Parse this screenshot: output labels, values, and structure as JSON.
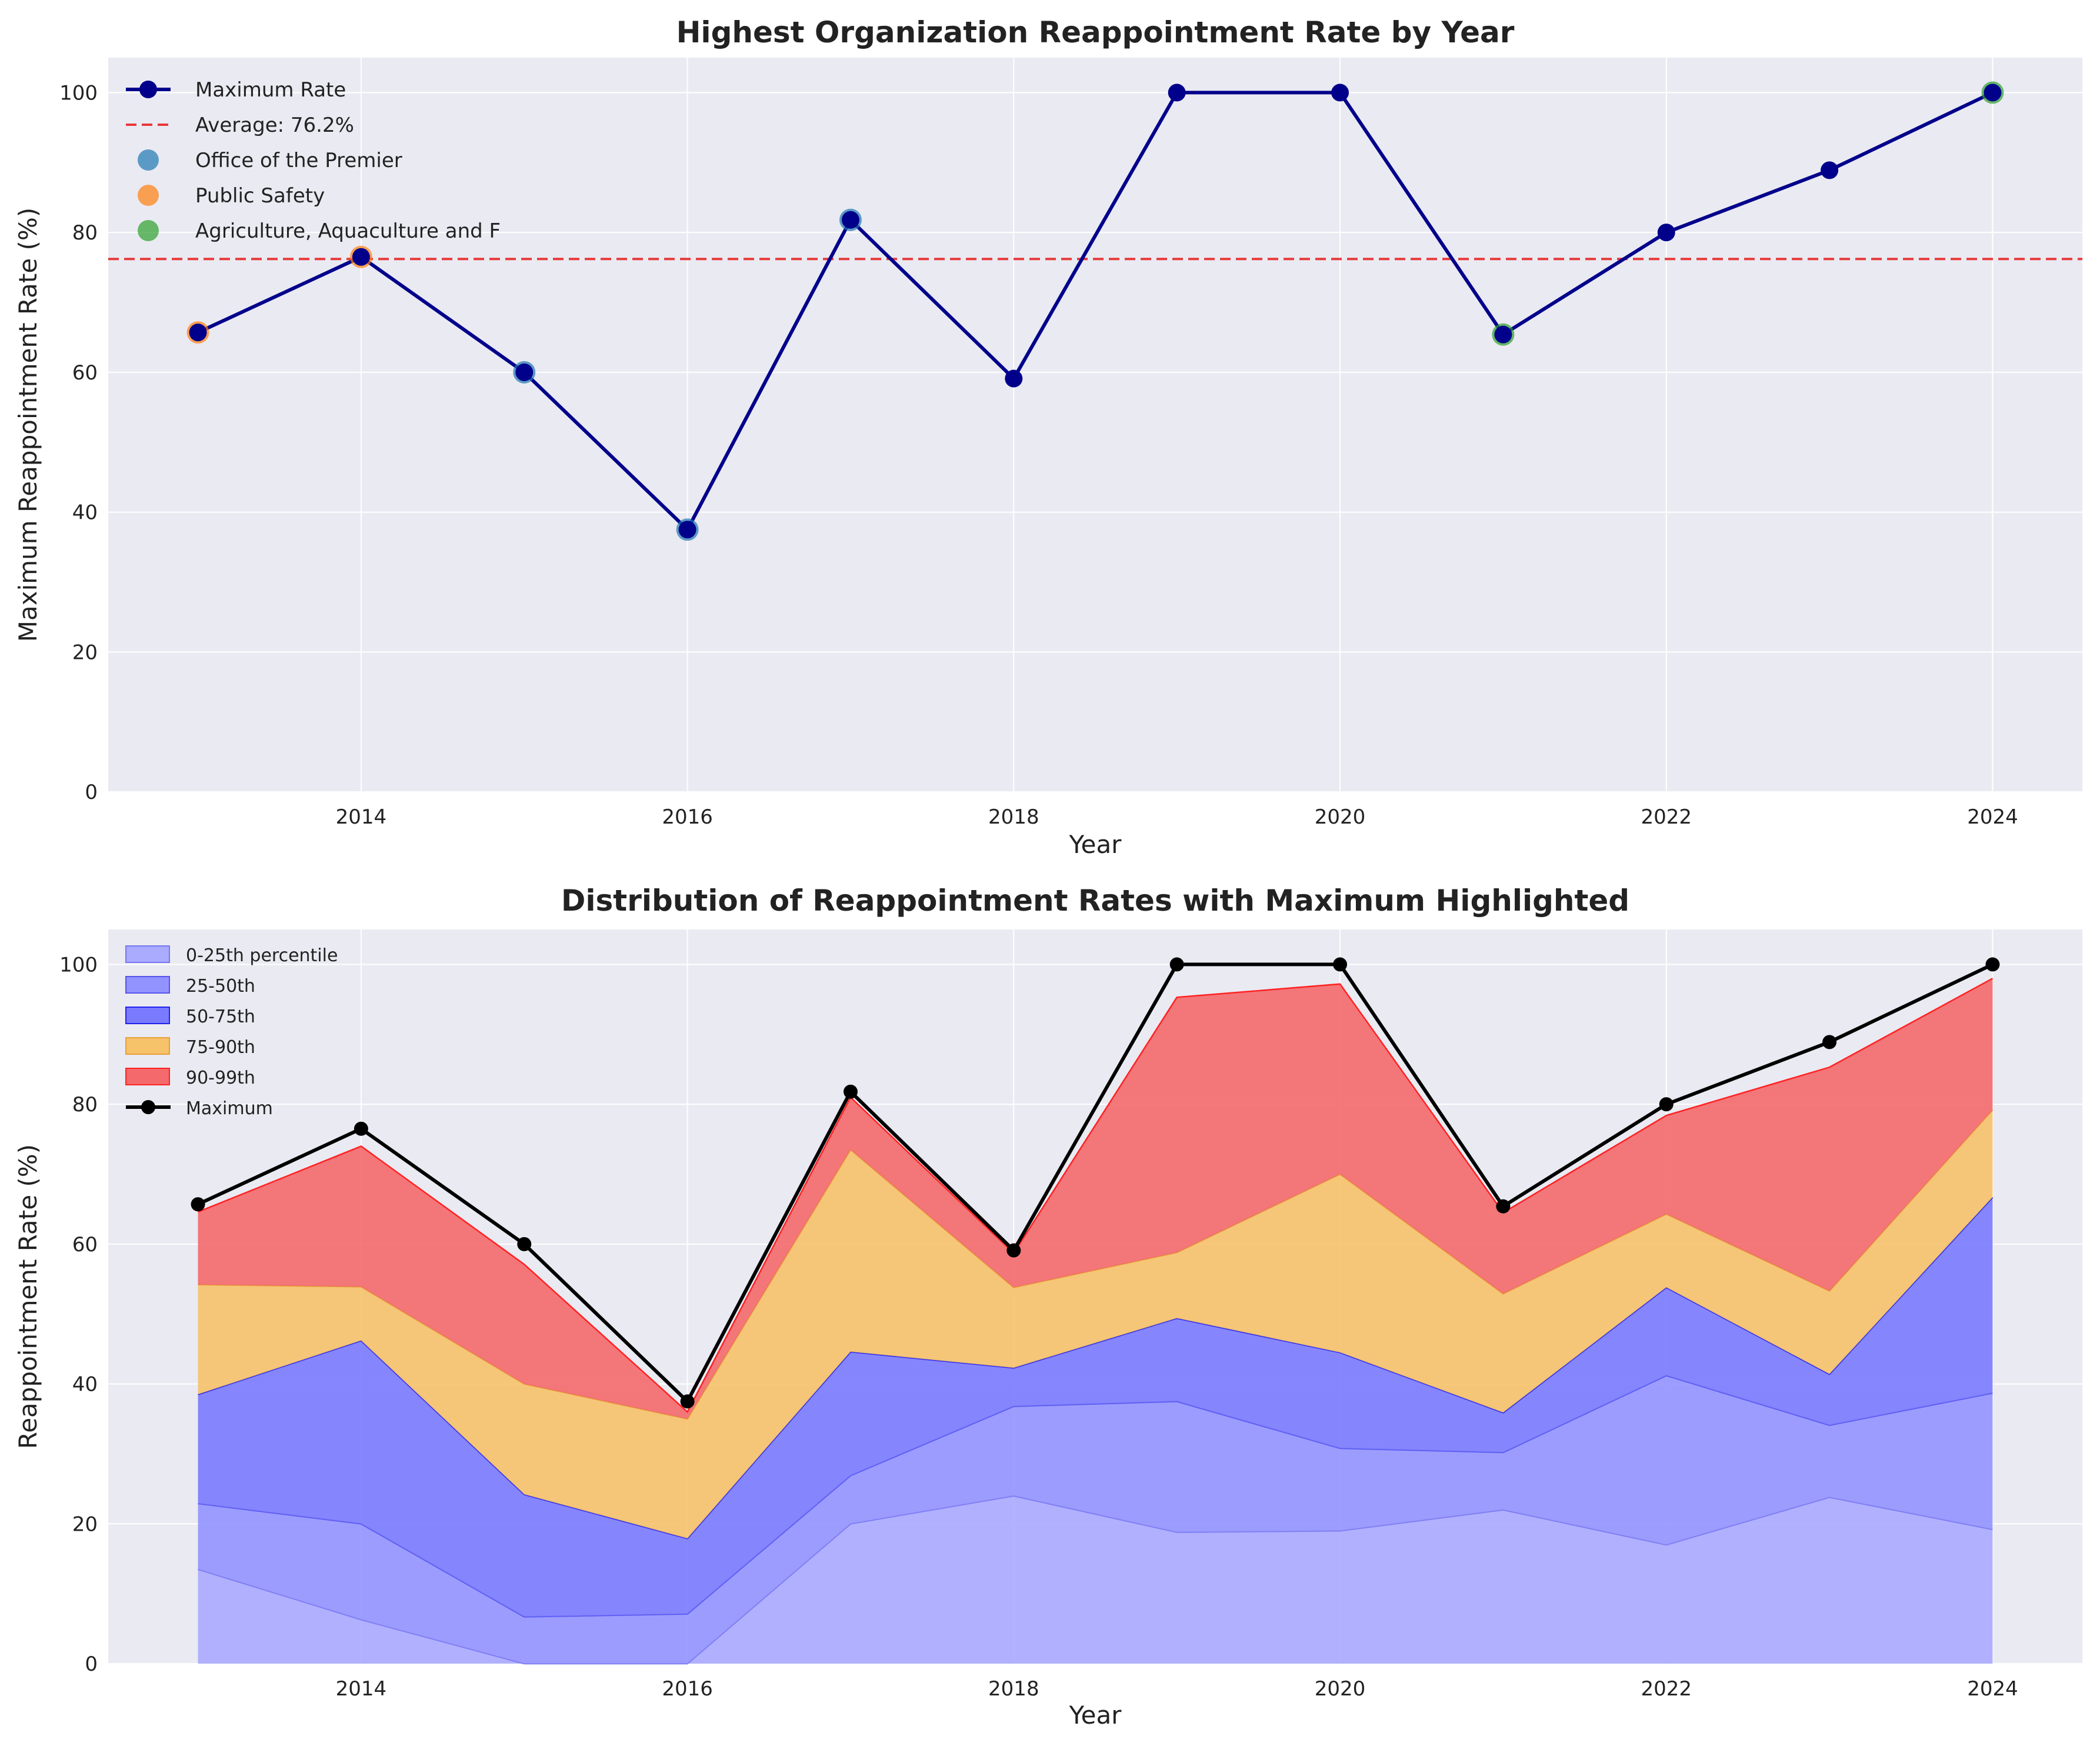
{
  "chart_data": [
    {
      "type": "line",
      "title": "Highest Organization Reappointment Rate by Year",
      "xlabel": "Year",
      "ylabel": "Maximum Reappointment Rate (%)",
      "xlim": [
        2012.45,
        2024.55
      ],
      "ylim": [
        0,
        105
      ],
      "xticks": [
        "2014",
        "2016",
        "2018",
        "2020",
        "2022",
        "2024"
      ],
      "yticks": [
        "0",
        "20",
        "40",
        "60",
        "80",
        "100"
      ],
      "grid": true,
      "legend_position": "upper-left",
      "x": [
        2013,
        2014,
        2015,
        2016,
        2017,
        2018,
        2019,
        2020,
        2021,
        2022,
        2023,
        2024
      ],
      "series": [
        {
          "name": "Maximum Rate",
          "color": "#00008b",
          "values": [
            65.7,
            76.5,
            60.0,
            37.5,
            81.8,
            59.1,
            100.0,
            100.0,
            65.4,
            80.0,
            88.9,
            100.0
          ]
        }
      ],
      "average": {
        "label": "Average: 76.2%",
        "value": 76.2,
        "color": "#e8393a"
      },
      "organizations": [
        {
          "name": "Office of the Premier",
          "color": "#1f77b4",
          "years": [
            2015,
            2016,
            2017
          ]
        },
        {
          "name": "Public Safety",
          "color": "#ff7f0e",
          "years": [
            2013,
            2014
          ]
        },
        {
          "name": "Agriculture, Aquaculture and F",
          "color": "#2ca02c",
          "years": [
            2021,
            2024
          ]
        }
      ]
    },
    {
      "type": "area",
      "title": "Distribution of Reappointment Rates with Maximum Highlighted",
      "xlabel": "Year",
      "ylabel": "Reappointment Rate (%)",
      "xlim": [
        2012.45,
        2024.55
      ],
      "ylim": [
        0,
        105
      ],
      "xticks": [
        "2014",
        "2016",
        "2018",
        "2020",
        "2022",
        "2024"
      ],
      "yticks": [
        "0",
        "20",
        "40",
        "60",
        "80",
        "100"
      ],
      "grid": true,
      "legend_position": "upper-left",
      "x": [
        2013,
        2014,
        2015,
        2016,
        2017,
        2018,
        2019,
        2020,
        2021,
        2022,
        2023,
        2024
      ],
      "percentiles": {
        "p0": [
          0,
          0,
          0,
          0,
          0,
          0,
          0,
          0,
          0,
          0,
          0,
          0
        ],
        "p25": [
          13.5,
          6.3,
          0.0,
          0.0,
          20.0,
          24.0,
          18.8,
          19.0,
          22.0,
          17.0,
          23.8,
          19.2
        ],
        "p50": [
          22.9,
          20.0,
          6.7,
          7.1,
          26.9,
          36.8,
          37.5,
          30.8,
          30.2,
          41.2,
          34.1,
          38.7
        ],
        "p75": [
          38.5,
          46.2,
          24.2,
          17.9,
          44.6,
          42.3,
          49.4,
          44.5,
          35.9,
          53.8,
          41.4,
          66.7
        ],
        "p90": [
          54.2,
          53.9,
          40.0,
          35.0,
          73.5,
          53.8,
          58.8,
          70.0,
          52.9,
          64.3,
          53.3,
          79.2
        ],
        "p99": [
          64.6,
          74.0,
          57.1,
          36.0,
          81.0,
          58.7,
          95.3,
          97.2,
          64.5,
          78.4,
          85.3,
          98.0
        ]
      },
      "bands": [
        {
          "name": "0-25th percentile",
          "from": "p0",
          "to": "p25",
          "fill": "#aaaaff",
          "edge": "#7777ee"
        },
        {
          "name": "25-50th",
          "from": "p25",
          "to": "p50",
          "fill": "#9393ff",
          "edge": "#5555ee"
        },
        {
          "name": "50-75th",
          "from": "p50",
          "to": "p75",
          "fill": "#7a7aff",
          "edge": "#2222ee"
        },
        {
          "name": "75-90th",
          "from": "p75",
          "to": "p90",
          "fill": "#f6c26a",
          "edge": "#e8a03a"
        },
        {
          "name": "90-99th",
          "from": "p90",
          "to": "p99",
          "fill": "#f4696b",
          "edge": "#ff2222"
        }
      ],
      "maximum": {
        "name": "Maximum",
        "color": "#000000",
        "values": [
          65.7,
          76.5,
          60.0,
          37.5,
          81.8,
          59.1,
          100.0,
          100.0,
          65.4,
          80.0,
          88.9,
          100.0
        ]
      }
    }
  ]
}
